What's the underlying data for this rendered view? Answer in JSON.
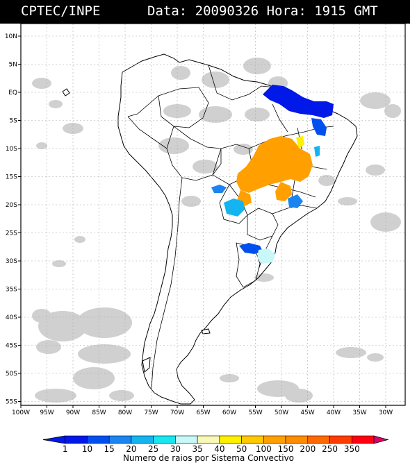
{
  "header": {
    "agency": "CPTEC/INPE",
    "date_time": "Data: 20090326 Hora: 1915 GMT"
  },
  "map": {
    "lat_labels": [
      "10N",
      "5N",
      "EQ",
      "5S",
      "10S",
      "15S",
      "20S",
      "25S",
      "30S",
      "35S",
      "40S",
      "45S",
      "50S",
      "55S"
    ],
    "lon_labels": [
      "100W",
      "95W",
      "90W",
      "85W",
      "80W",
      "75W",
      "70W",
      "65W",
      "60W",
      "55W",
      "50W",
      "45W",
      "40W",
      "35W",
      "30W"
    ],
    "background_color": "#ffffff",
    "coastline_color": "#000000",
    "cloud_color": "#c8c8c8"
  },
  "legend": {
    "caption": "Numero de raios por Sistema Convectivo",
    "classes": [
      {
        "label": "1",
        "color": "#0018e8"
      },
      {
        "label": "10",
        "color": "#0050f0"
      },
      {
        "label": "15",
        "color": "#1a84f0"
      },
      {
        "label": "20",
        "color": "#14b4f0"
      },
      {
        "label": "25",
        "color": "#18e6f0"
      },
      {
        "label": "30",
        "color": "#c8f8f8"
      },
      {
        "label": "35",
        "color": "#f8f8b8"
      },
      {
        "label": "40",
        "color": "#fff000"
      },
      {
        "label": "50",
        "color": "#ffc800"
      },
      {
        "label": "100",
        "color": "#ffa000"
      },
      {
        "label": "150",
        "color": "#ff8c00"
      },
      {
        "label": "200",
        "color": "#ff6a00"
      },
      {
        "label": "250",
        "color": "#ff3c00"
      },
      {
        "label": "350",
        "color": "#ff0010"
      }
    ],
    "end_color": "#e0006a"
  }
}
